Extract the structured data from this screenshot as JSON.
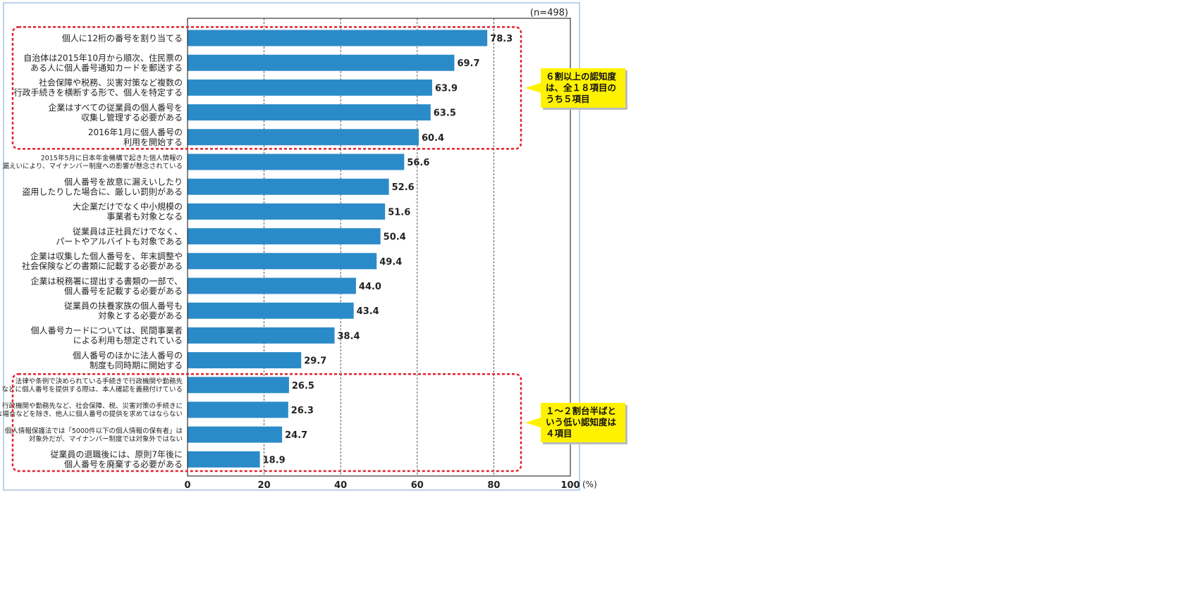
{
  "colors": {
    "bar": "#2b8bc9",
    "frame": "#7aa6cf",
    "highlight_box": "#e0232f",
    "callout_fill": "#fff200",
    "text": "#222222"
  },
  "chart_data": {
    "type": "bar",
    "orientation": "horizontal",
    "sample_note": "(n=498)",
    "unit": "(%)",
    "xlim": [
      0,
      100
    ],
    "x_ticks": [
      "0",
      "20",
      "40",
      "60",
      "80",
      "100"
    ],
    "grid": "vertical dashed",
    "categories": [
      [
        "個人に12桁の番号を割り当てる"
      ],
      [
        "自治体は2015年10月から順次、住民票の",
        "ある人に個人番号通知カードを郵送する"
      ],
      [
        "社会保障や税務、災害対策など複数の",
        "行政手続きを横断する形で、個人を特定する"
      ],
      [
        "企業はすべての従業員の個人番号を",
        "収集し管理する必要がある"
      ],
      [
        "2016年1月に個人番号の",
        "利用を開始する"
      ],
      [
        "2015年5月に日本年金機構で起きた個人情報の",
        "漏えいにより、マイナンバー制度への影響が懸念されている"
      ],
      [
        "個人番号を故意に漏えいしたり",
        "盗用したりした場合に、厳しい罰則がある"
      ],
      [
        "大企業だけでなく中小規模の",
        "事業者も対象となる"
      ],
      [
        "従業員は正社員だけでなく、",
        "パートやアルバイトも対象である"
      ],
      [
        "企業は収集した個人番号を、年末調整や",
        "社会保険などの書類に記載する必要がある"
      ],
      [
        "企業は税務署に提出する書類の一部で、",
        "個人番号を記載する必要がある"
      ],
      [
        "従業員の扶養家族の個人番号も",
        "対象とする必要がある"
      ],
      [
        "個人番号カードについては、民間事業者",
        "による利用も想定されている"
      ],
      [
        "個人番号のほかに法人番号の",
        "制度も同時期に開始する"
      ],
      [
        "法律や条例で決められている手続きで行政機関や勤務先",
        "などに個人番号を提供する際は、本人確認を義務付けている"
      ],
      [
        "行政機関や勤務先など、社会保障、税、災害対策の手続きに",
        "必要な場合などを除き、他人に個人番号の提供を求めてはならない"
      ],
      [
        "個人情報保護法では「5000件以下の個人情報の保有者」は",
        "対象外だが、マイナンバー制度では対象外ではない"
      ],
      [
        "従業員の退職後には、原則7年後に",
        "個人番号を廃棄する必要がある"
      ]
    ],
    "values": [
      78.3,
      69.7,
      63.9,
      63.5,
      60.4,
      56.6,
      52.6,
      51.6,
      50.4,
      49.4,
      44.0,
      43.4,
      38.4,
      29.7,
      26.5,
      26.3,
      24.7,
      18.9
    ],
    "value_labels": [
      "78.3",
      "69.7",
      "63.9",
      "63.5",
      "60.4",
      "56.6",
      "52.6",
      "51.6",
      "50.4",
      "49.4",
      "44.0",
      "43.4",
      "38.4",
      "29.7",
      "26.5",
      "26.3",
      "24.7",
      "18.9"
    ],
    "annotations": [
      {
        "group_first": 0,
        "group_last": 4,
        "lines": [
          "６割以上の認知度",
          "は、全１８項目の",
          "うち５項目"
        ]
      },
      {
        "group_first": 14,
        "group_last": 17,
        "lines": [
          "１～２割台半ばと",
          "いう低い認知度は",
          "４項目"
        ]
      }
    ]
  }
}
